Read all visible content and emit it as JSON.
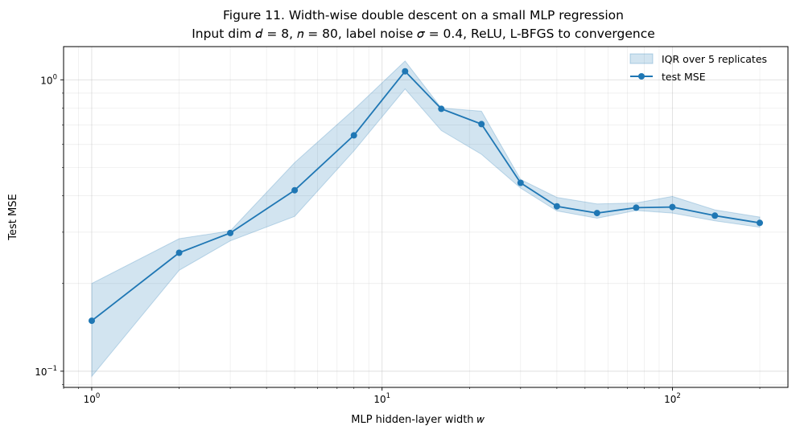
{
  "chart_data": {
    "type": "line",
    "title_line1": "Figure 11.  Width-wise double descent on a small MLP regression",
    "title_line2": "Input dim 𝑑 = 8, 𝑛 = 80, label noise 𝜎 = 0.4, ReLU, L-BFGS to convergence",
    "xlabel": "MLP hidden-layer width  𝑤",
    "ylabel": "Test MSE",
    "xscale": "log",
    "yscale": "log",
    "xlim": [
      0.8,
      250
    ],
    "ylim": [
      0.088,
      1.3
    ],
    "grid": true,
    "legend_position": "top-right",
    "x_ticks": [
      {
        "value": 1,
        "base": "10",
        "exp": "0"
      },
      {
        "value": 10,
        "base": "10",
        "exp": "1"
      },
      {
        "value": 100,
        "base": "10",
        "exp": "2"
      }
    ],
    "y_ticks": [
      {
        "value": 0.1,
        "base": "10",
        "exp": "−1"
      },
      {
        "value": 1,
        "base": "10",
        "exp": "0"
      }
    ],
    "x": [
      1,
      2,
      3,
      5,
      8,
      12,
      16,
      22,
      30,
      40,
      55,
      75,
      100,
      140,
      200
    ],
    "series": [
      {
        "name": "test MSE",
        "color": "#1f77b4",
        "values": [
          0.149,
          0.255,
          0.298,
          0.418,
          0.645,
          1.07,
          0.795,
          0.705,
          0.443,
          0.368,
          0.349,
          0.364,
          0.366,
          0.342,
          0.323
        ]
      }
    ],
    "band": {
      "name": "IQR over 5 replicates",
      "color": "#1f77b4",
      "lower": [
        0.096,
        0.222,
        0.28,
        0.34,
        0.57,
        0.93,
        0.67,
        0.555,
        0.425,
        0.355,
        0.335,
        0.356,
        0.349,
        0.328,
        0.312
      ],
      "upper": [
        0.2,
        0.285,
        0.303,
        0.52,
        0.79,
        1.16,
        0.8,
        0.78,
        0.455,
        0.395,
        0.375,
        0.378,
        0.398,
        0.358,
        0.338
      ]
    }
  }
}
